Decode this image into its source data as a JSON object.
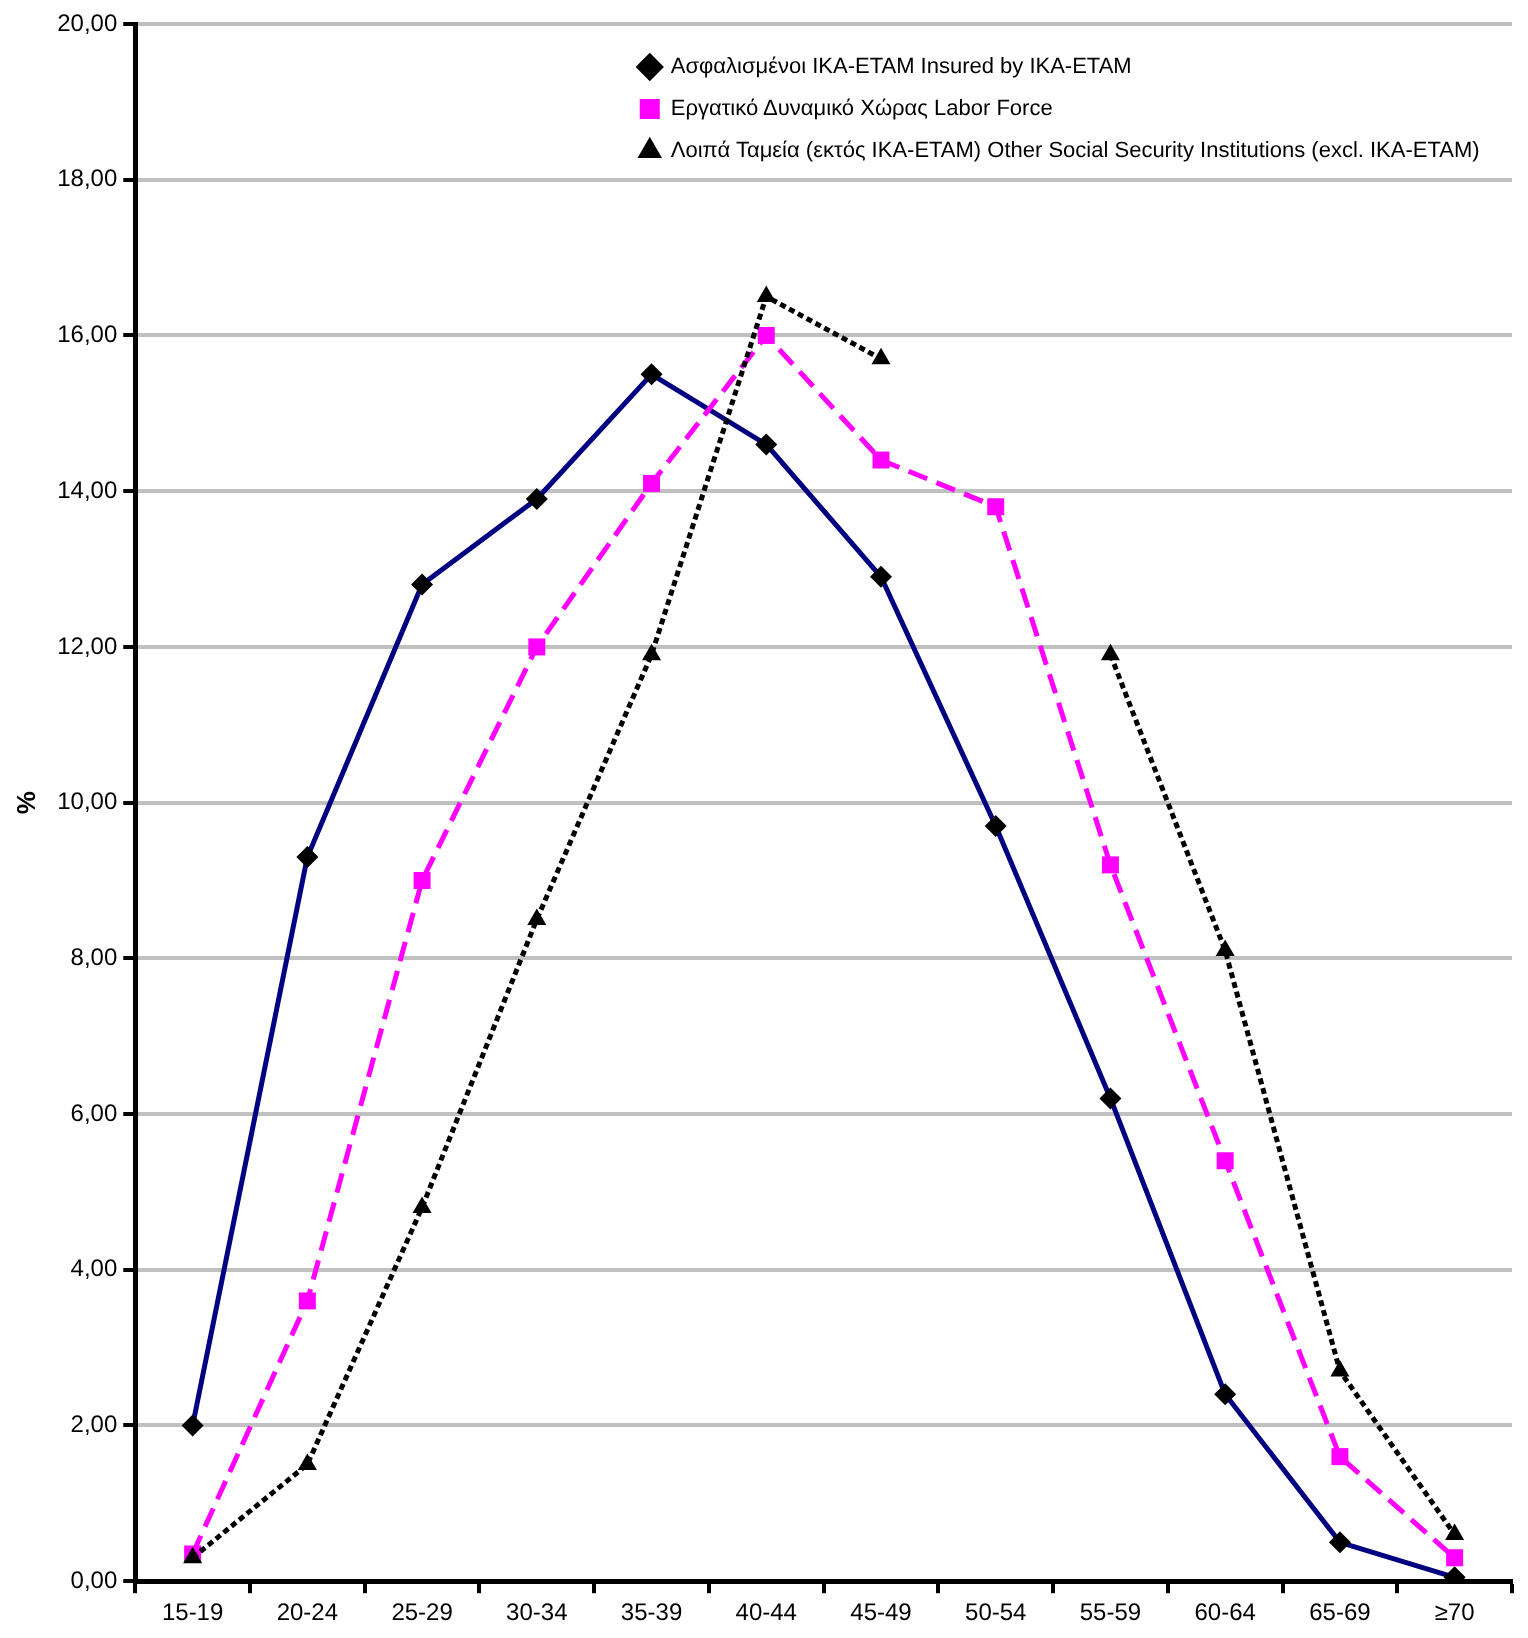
{
  "chart_data": {
    "type": "line",
    "ylabel": "%",
    "categories": [
      "15-19",
      "20-24",
      "25-29",
      "30-34",
      "35-39",
      "40-44",
      "45-49",
      "50-54",
      "55-59",
      "60-64",
      "65-69",
      "≥70"
    ],
    "ylim": [
      0,
      20
    ],
    "yticks": [
      {
        "value": 0,
        "label": "0,00"
      },
      {
        "value": 2,
        "label": "2,00"
      },
      {
        "value": 4,
        "label": "4,00"
      },
      {
        "value": 6,
        "label": "6,00"
      },
      {
        "value": 8,
        "label": "8,00"
      },
      {
        "value": 10,
        "label": "10,00"
      },
      {
        "value": 12,
        "label": "12,00"
      },
      {
        "value": 14,
        "label": "14,00"
      },
      {
        "value": 16,
        "label": "16,00"
      },
      {
        "value": 18,
        "label": "18,00"
      },
      {
        "value": 20,
        "label": "20,00"
      }
    ],
    "grid": "y",
    "legend": "top right",
    "series": [
      {
        "name": "Ασφαλισμένοι ΙΚΑ-ΕΤΑΜ\nInsured by IKA-ETAM",
        "color": "#000080",
        "marker": "diamond",
        "line_style": "solid",
        "values": [
          2.0,
          9.3,
          12.8,
          13.9,
          15.5,
          14.6,
          12.9,
          9.7,
          6.2,
          2.4,
          0.5,
          0.05
        ]
      },
      {
        "name": "Εργατικό Δυναμικό Χώρας\nLabor Force",
        "color": "#ff00ff",
        "marker": "square",
        "line_style": "dashed",
        "values": [
          0.35,
          3.6,
          9.0,
          12.0,
          14.1,
          16.0,
          14.4,
          13.8,
          9.2,
          5.4,
          1.6,
          0.3
        ]
      },
      {
        "name": "Λοιπά Ταμεία (εκτός ΙΚΑ-ΕΤΑΜ)\nOther Social Security Institutions\n(excl. IKA-ETAM)",
        "color": "#000000",
        "marker": "triangle",
        "line_style": "dotted",
        "values": [
          0.3,
          1.5,
          4.8,
          8.5,
          11.9,
          16.5,
          15.7,
          null,
          11.9,
          8.1,
          2.7,
          0.6
        ]
      }
    ]
  }
}
